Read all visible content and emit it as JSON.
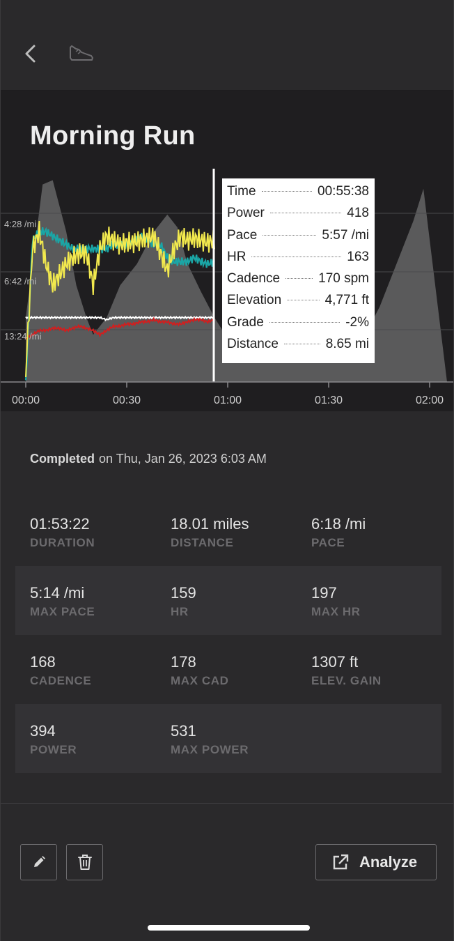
{
  "header": {
    "back_icon": "chevron-left-icon",
    "activity_icon": "running-shoe-icon"
  },
  "title": "Morning Run",
  "chart": {
    "y_tick_labels": [
      "4:28 /mi",
      "6:42 /mi",
      "13:24 /mi"
    ],
    "x_tick_labels": [
      "00:00",
      "00:30",
      "01:00",
      "01:30",
      "02:00"
    ],
    "colors": {
      "elevation_fill": "#616062",
      "power": "#f2e94e",
      "pace": "#1aa6a6",
      "heart_rate": "#d11f1f",
      "cadence": "#ffffff",
      "cursor": "#ffffff"
    }
  },
  "chart_data": {
    "type": "line",
    "x_unit": "elapsed time (hh:mm)",
    "x_ticks": [
      "00:00",
      "00:30",
      "01:00",
      "01:30",
      "02:00"
    ],
    "cursor_x": "00:55:38",
    "series": [
      {
        "key": "elevation",
        "style": "area",
        "x": [
          0,
          5,
          8,
          12,
          15,
          18,
          20,
          24,
          28,
          33,
          38,
          42,
          45,
          48,
          52,
          56,
          60,
          65,
          70,
          75,
          80,
          85,
          90,
          95,
          100,
          105,
          110,
          115,
          118
        ],
        "values": [
          0.3,
          0.92,
          0.94,
          0.7,
          0.45,
          0.3,
          0.22,
          0.3,
          0.45,
          0.55,
          0.7,
          0.78,
          0.72,
          0.55,
          0.42,
          0.3,
          0.2,
          0.12,
          0.1,
          0.12,
          0.1,
          0.1,
          0.1,
          0.12,
          0.2,
          0.35,
          0.55,
          0.75,
          0.9
        ]
      },
      {
        "key": "power",
        "minutes": [
          0,
          2,
          4,
          6,
          8,
          10,
          12,
          14,
          16,
          18,
          20,
          22,
          24,
          26,
          28,
          30,
          32,
          34,
          36,
          38,
          40,
          42,
          44,
          46,
          48,
          50,
          52,
          54,
          56
        ],
        "values": [
          0.05,
          0.62,
          0.7,
          0.55,
          0.45,
          0.5,
          0.55,
          0.58,
          0.6,
          0.6,
          0.45,
          0.62,
          0.68,
          0.66,
          0.64,
          0.65,
          0.65,
          0.66,
          0.67,
          0.68,
          0.6,
          0.52,
          0.62,
          0.68,
          0.66,
          0.67,
          0.66,
          0.65,
          0.66
        ]
      },
      {
        "key": "pace",
        "minutes": [
          0,
          2,
          4,
          6,
          8,
          10,
          12,
          14,
          16,
          18,
          20,
          22,
          24,
          26,
          28,
          30,
          32,
          34,
          36,
          38,
          40,
          42,
          44,
          46,
          48,
          50,
          52,
          54,
          56
        ],
        "values": [
          0.0,
          0.66,
          0.7,
          0.7,
          0.68,
          0.66,
          0.64,
          0.62,
          0.62,
          0.62,
          0.62,
          0.62,
          0.62,
          0.64,
          0.64,
          0.64,
          0.66,
          0.68,
          0.66,
          0.64,
          0.64,
          0.58,
          0.56,
          0.56,
          0.56,
          0.58,
          0.56,
          0.55,
          0.56
        ]
      },
      {
        "key": "heart_rate",
        "minutes": [
          0,
          2,
          4,
          6,
          8,
          10,
          12,
          14,
          16,
          18,
          20,
          22,
          24,
          26,
          28,
          30,
          32,
          34,
          36,
          38,
          40,
          42,
          44,
          46,
          48,
          50,
          52,
          54,
          56
        ],
        "values": [
          0.2,
          0.22,
          0.24,
          0.24,
          0.25,
          0.25,
          0.24,
          0.25,
          0.26,
          0.25,
          0.24,
          0.22,
          0.24,
          0.26,
          0.26,
          0.27,
          0.27,
          0.28,
          0.28,
          0.29,
          0.28,
          0.28,
          0.27,
          0.27,
          0.28,
          0.29,
          0.29,
          0.28,
          0.29
        ]
      },
      {
        "key": "cadence",
        "minutes": [
          0,
          2,
          4,
          6,
          8,
          10,
          12,
          14,
          16,
          18,
          20,
          22,
          24,
          26,
          28,
          30,
          32,
          34,
          36,
          38,
          40,
          42,
          44,
          46,
          48,
          50,
          52,
          54,
          56
        ],
        "values": [
          0.3,
          0.3,
          0.3,
          0.3,
          0.3,
          0.3,
          0.3,
          0.3,
          0.3,
          0.3,
          0.3,
          0.3,
          0.29,
          0.3,
          0.3,
          0.3,
          0.3,
          0.3,
          0.3,
          0.3,
          0.3,
          0.3,
          0.3,
          0.3,
          0.3,
          0.3,
          0.3,
          0.3,
          0.3
        ]
      }
    ]
  },
  "tooltip": [
    {
      "key": "Time",
      "value": "00:55:38"
    },
    {
      "key": "Power",
      "value": "418"
    },
    {
      "key": "Pace",
      "value": "5:57 /mi"
    },
    {
      "key": "HR",
      "value": "163"
    },
    {
      "key": "Cadence",
      "value": "170 spm"
    },
    {
      "key": "Elevation",
      "value": "4,771 ft"
    },
    {
      "key": "Grade",
      "value": "-2%"
    },
    {
      "key": "Distance",
      "value": "8.65 mi"
    }
  ],
  "completed": {
    "label": "Completed",
    "date_text": "on Thu, Jan 26, 2023 6:03 AM"
  },
  "stats": [
    [
      {
        "value": "01:53:22",
        "label": "DURATION"
      },
      {
        "value": "18.01 miles",
        "label": "DISTANCE"
      },
      {
        "value": "6:18 /mi",
        "label": "PACE"
      }
    ],
    [
      {
        "value": "5:14 /mi",
        "label": "MAX PACE"
      },
      {
        "value": "159",
        "label": "HR"
      },
      {
        "value": "197",
        "label": "MAX HR"
      }
    ],
    [
      {
        "value": "168",
        "label": "CADENCE"
      },
      {
        "value": "178",
        "label": "MAX CAD"
      },
      {
        "value": "1307 ft",
        "label": "ELEV. GAIN"
      }
    ],
    [
      {
        "value": "394",
        "label": "POWER"
      },
      {
        "value": "531",
        "label": "MAX POWER"
      }
    ]
  ],
  "actions": {
    "edit_icon": "pencil-icon",
    "delete_icon": "trash-icon",
    "analyze_icon": "external-link-icon",
    "analyze_label": "Analyze"
  }
}
